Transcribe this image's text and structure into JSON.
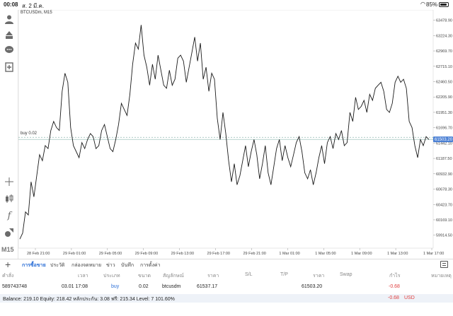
{
  "status": {
    "time": "00:08",
    "date": "ส. 2 มี.ค.",
    "battery": "85%",
    "battery_level": 0.85
  },
  "chart": {
    "symbol": "BTCUSDm, M15",
    "order_line_label": "buy 0.02",
    "current_price": "61503.20",
    "price_ticks": [
      "63478.90",
      "63224.30",
      "62969.70",
      "62715.10",
      "62460.50",
      "62205.90",
      "61951.30",
      "61696.70",
      "61442.10",
      "61187.50",
      "60932.90",
      "60678.30",
      "60423.70",
      "60169.10",
      "59914.50"
    ],
    "time_ticks": [
      "28 Feb 21:00",
      "29 Feb 01:00",
      "29 Feb 05:00",
      "29 Feb 09:00",
      "29 Feb 13:00",
      "29 Feb 17:00",
      "29 Feb 21:00",
      "1 Mar 01:00",
      "1 Mar 05:00",
      "1 Mar 09:00",
      "1 Mar 13:00",
      "1 Mar 17:00"
    ],
    "timeframe": "M15",
    "line_color": "#1a1a1a",
    "order_line_color": "#8fb8b0",
    "bid_tag_color": "#4a7fd4"
  },
  "chart_data": {
    "type": "line",
    "title": "BTCUSDm, M15",
    "xlabel": "",
    "ylabel": "",
    "ylim": [
      59700,
      63650
    ],
    "series": [
      {
        "name": "BTCUSDm",
        "values": [
          59850,
          59950,
          60300,
          60250,
          60800,
          60550,
          60900,
          61250,
          61150,
          61400,
          61350,
          61650,
          61800,
          61700,
          61650,
          62300,
          62600,
          62450,
          61700,
          61400,
          61300,
          61200,
          61450,
          61350,
          61500,
          61600,
          61550,
          61350,
          61400,
          61650,
          61750,
          61550,
          61350,
          61300,
          61500,
          61750,
          62100,
          62000,
          61900,
          62250,
          62750,
          63100,
          63000,
          63400,
          62900,
          62700,
          62400,
          62750,
          62500,
          62900,
          62650,
          62400,
          62350,
          62650,
          62400,
          62500,
          62850,
          62900,
          62800,
          62450,
          62700,
          62950,
          63200,
          62800,
          63100,
          62500,
          62700,
          62300,
          62600,
          62500,
          61850,
          61500,
          61950,
          61600,
          61150,
          60800,
          61100,
          60750,
          60900,
          61150,
          61400,
          61050,
          61300,
          61500,
          61250,
          60850,
          61100,
          61400,
          60950,
          60750,
          61050,
          61350,
          61500,
          61150,
          61400,
          61200,
          61050,
          61250,
          61450,
          61550,
          61300,
          60950,
          60850,
          61000,
          60750,
          60950,
          61200,
          61400,
          61100,
          61450,
          61550,
          61350,
          61600,
          61500,
          61650,
          61400,
          61450,
          61950,
          61800,
          62200,
          62000,
          62050,
          62150,
          61950,
          62250,
          62150,
          62350,
          62400,
          62450,
          62300,
          62000,
          61950,
          62100,
          62450,
          62550,
          62450,
          62500,
          62350,
          61800,
          61700,
          61400,
          61200,
          61500,
          61400,
          61550,
          61500
        ]
      }
    ]
  },
  "toolbar_icons": [
    "account-icon",
    "trade-icon",
    "chat-icon",
    "add-order-icon",
    "crosshair-icon",
    "candles-icon",
    "indicators-icon",
    "objects-icon"
  ],
  "tabs": {
    "items": [
      "การซื้อขาย",
      "ประวัติ",
      "กล่องจดหมาย",
      "ข่าว",
      "บันทึก",
      "การตั้งค่า"
    ],
    "active": "การซื้อขาย"
  },
  "table": {
    "columns": [
      "คำสั่ง",
      "เวลา",
      "ประเภท",
      "ขนาด",
      "สัญลักษณ์",
      "ราคา",
      "S/L",
      "T/P",
      "ราคา",
      "Swap",
      "กำไร",
      "หมายเหตุ"
    ],
    "rows": [
      {
        "order": "589743748",
        "time": "03.01 17:08",
        "type": "buy",
        "volume": "0.02",
        "symbol": "btcusdm",
        "open_price": "61537.17",
        "sl": "",
        "tp": "",
        "price": "61503.20",
        "swap": "",
        "profit": "-0.68",
        "comment": ""
      }
    ]
  },
  "balance": {
    "summary": "Balance: 219.10 Equity: 218.42 หลักประกัน: 3.08 ฟรี: 215.34 Level: 7 101.60%",
    "total": "-0.68",
    "currency": "USD"
  }
}
